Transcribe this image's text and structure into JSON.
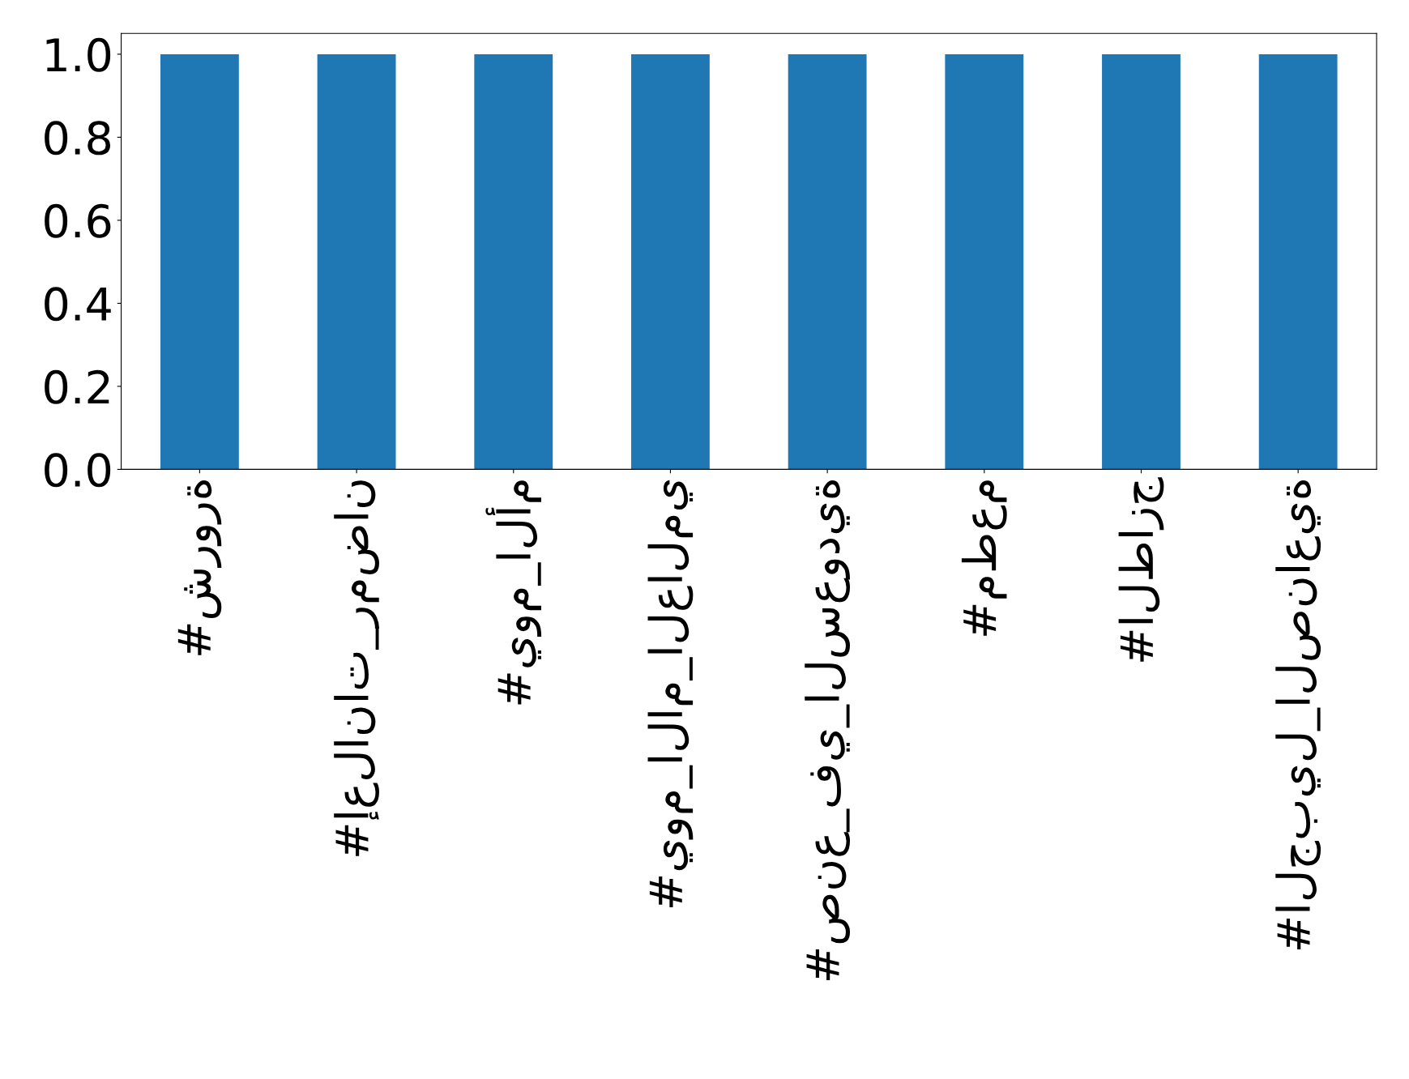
{
  "chart_data": {
    "type": "bar",
    "categories": [
      "#شرورة",
      "#إعلانات_رمضان",
      "#يوم_الأم",
      "#يوم_الام_العالمي",
      "#صنع_في_السعودية",
      "#مطعم",
      "#الطازج",
      "#الجبيل_الصناعية"
    ],
    "values": [
      1,
      1,
      1,
      1,
      1,
      1,
      1,
      1
    ],
    "color": "#1f77b4",
    "ylim": [
      0,
      1.05
    ],
    "yticks": [
      {
        "value": 0,
        "label": "0.0"
      },
      {
        "value": 0.2,
        "label": "0.2"
      },
      {
        "value": 0.4,
        "label": "0.4"
      },
      {
        "value": 0.6,
        "label": "0.6"
      },
      {
        "value": 0.8,
        "label": "0.8"
      },
      {
        "value": 1,
        "label": "1.0"
      }
    ],
    "grid": false
  }
}
